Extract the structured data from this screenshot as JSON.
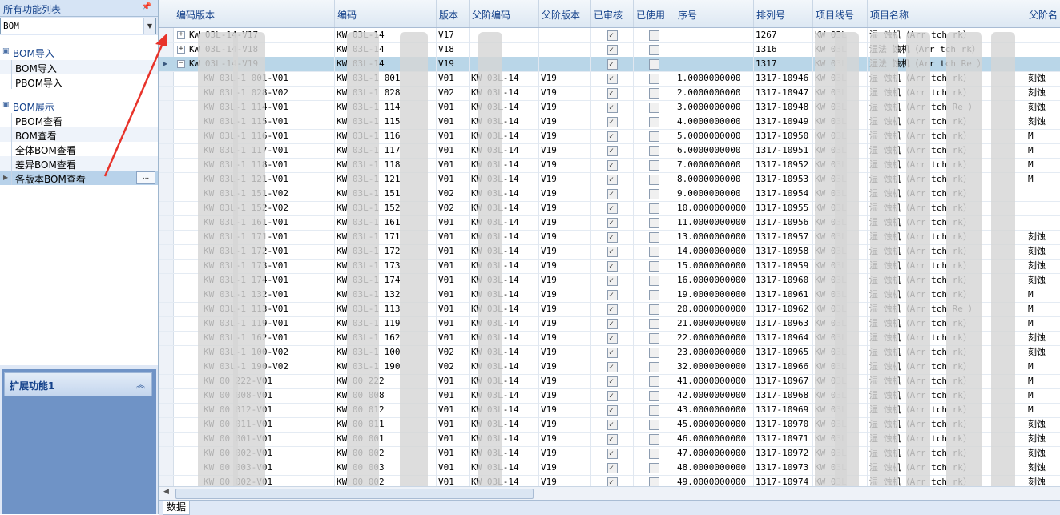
{
  "left_panel": {
    "title": "所有功能列表",
    "pin": "ᅲ",
    "combo_value": "BOM",
    "groups": [
      {
        "label": "BOM导入",
        "items": [
          "BOM导入",
          "PBOM导入"
        ]
      },
      {
        "label": "BOM展示",
        "items": [
          "PBOM查看",
          "BOM查看",
          "全体BOM查看",
          "差异BOM查看",
          "各版本BOM查看"
        ]
      }
    ],
    "selected_item_more": "...",
    "extension_title": "扩展功能1",
    "extension_icon": "≈"
  },
  "grid": {
    "columns": [
      "编码版本",
      "编码",
      "版本",
      "父阶编码",
      "父阶版本",
      "已审核",
      "已使用",
      "序号",
      "排列号",
      "项目线号",
      "项目名称",
      "父阶名"
    ],
    "rows": [
      {
        "cv": "KW   03L-14-V17",
        "code": "KW   03L-14",
        "ver": "V17",
        "pcode": "",
        "pver": "",
        "aud": true,
        "used": false,
        "seq": "",
        "arr": "1267",
        "line": "KW   03L",
        "name": "湿    蚀机（Arr   tch   rk）",
        "pname": "",
        "kind": "parent",
        "exp": "+"
      },
      {
        "cv": "KW   03L-14-V18",
        "code": "KW   03L-14",
        "ver": "V18",
        "pcode": "",
        "pver": "",
        "aud": true,
        "used": false,
        "seq": "",
        "arr": "1316",
        "line": "KW   03L",
        "name": "湿法   蚀机（Arr   tch   rk）",
        "pname": "",
        "kind": "parent",
        "exp": "+"
      },
      {
        "cv": "KW   03L-14-V19",
        "code": "KW   03L-14",
        "ver": "V19",
        "pcode": "",
        "pver": "",
        "aud": true,
        "used": false,
        "seq": "",
        "arr": "1317",
        "line": "KW   03L",
        "name": "湿法   蚀机（Arr   tch Re   ）",
        "pname": "",
        "kind": "selected",
        "exp": "−"
      },
      {
        "cv": "KW   03L-1   001-V01",
        "code": "KW   03L-1   001",
        "ver": "V01",
        "pcode": "KW   03L-14",
        "pver": "V19",
        "aud": true,
        "used": false,
        "seq": "1.0000000000",
        "arr": "1317-10946",
        "line": "KW   03L",
        "name": "湿    蚀机（Arr   tch   rk）",
        "pname": "刻蚀",
        "kind": "child"
      },
      {
        "cv": "KW   03L-1   028-V02",
        "code": "KW   03L-1   028",
        "ver": "V02",
        "pcode": "KW   03L-14",
        "pver": "V19",
        "aud": true,
        "used": false,
        "seq": "2.0000000000",
        "arr": "1317-10947",
        "line": "KW   03L",
        "name": "湿    蚀机（Arr   tch   rk）",
        "pname": "刻蚀",
        "kind": "child"
      },
      {
        "cv": "KW   03L-1   114-V01",
        "code": "KW   03L-1   114",
        "ver": "V01",
        "pcode": "KW   03L-14",
        "pver": "V19",
        "aud": true,
        "used": false,
        "seq": "3.0000000000",
        "arr": "1317-10948",
        "line": "KW   03L",
        "name": "湿    蚀机（Arr   tch Re   ）",
        "pname": "刻蚀",
        "kind": "child"
      },
      {
        "cv": "KW   03L-1   115-V01",
        "code": "KW   03L-1   115",
        "ver": "V01",
        "pcode": "KW   03L-14",
        "pver": "V19",
        "aud": true,
        "used": false,
        "seq": "4.0000000000",
        "arr": "1317-10949",
        "line": "KW   03L",
        "name": "湿    蚀机（Arr   tch   rk）",
        "pname": "刻蚀",
        "kind": "child"
      },
      {
        "cv": "KW   03L-1   116-V01",
        "code": "KW   03L-1   116",
        "ver": "V01",
        "pcode": "KW   03L-14",
        "pver": "V19",
        "aud": true,
        "used": false,
        "seq": "5.0000000000",
        "arr": "1317-10950",
        "line": "KW   03L",
        "name": "湿    蚀机（Arr   tch   rk）",
        "pname": "M",
        "kind": "child"
      },
      {
        "cv": "KW   03L-1   117-V01",
        "code": "KW   03L-1   117",
        "ver": "V01",
        "pcode": "KW   03L-14",
        "pver": "V19",
        "aud": true,
        "used": false,
        "seq": "6.0000000000",
        "arr": "1317-10951",
        "line": "KW   03L",
        "name": "湿    蚀机（Arr   tch   rk）",
        "pname": "M",
        "kind": "child"
      },
      {
        "cv": "KW   03L-1   118-V01",
        "code": "KW   03L-1   118",
        "ver": "V01",
        "pcode": "KW   03L-14",
        "pver": "V19",
        "aud": true,
        "used": false,
        "seq": "7.0000000000",
        "arr": "1317-10952",
        "line": "KW   03L",
        "name": "湿    蚀机（Arr   tch   rk）",
        "pname": "M",
        "kind": "child"
      },
      {
        "cv": "KW   03L-1   121-V01",
        "code": "KW   03L-1   121",
        "ver": "V01",
        "pcode": "KW   03L-14",
        "pver": "V19",
        "aud": true,
        "used": false,
        "seq": "8.0000000000",
        "arr": "1317-10953",
        "line": "KW   03L",
        "name": "湿    蚀机（Arr   tch   rk）",
        "pname": "M",
        "kind": "child"
      },
      {
        "cv": "KW   03L-1   151-V02",
        "code": "KW   03L-1   151",
        "ver": "V02",
        "pcode": "KW   03L-14",
        "pver": "V19",
        "aud": true,
        "used": false,
        "seq": "9.0000000000",
        "arr": "1317-10954",
        "line": "KW   03L",
        "name": "湿    蚀机（Arr   tch   rk）",
        "pname": "",
        "kind": "child"
      },
      {
        "cv": "KW   03L-1   152-V02",
        "code": "KW   03L-1   152",
        "ver": "V02",
        "pcode": "KW   03L-14",
        "pver": "V19",
        "aud": true,
        "used": false,
        "seq": "10.0000000000",
        "arr": "1317-10955",
        "line": "KW   03L",
        "name": "湿    蚀机（Arr   tch   rk）",
        "pname": "",
        "kind": "child"
      },
      {
        "cv": "KW   03L-1   161-V01",
        "code": "KW   03L-1   161",
        "ver": "V01",
        "pcode": "KW   03L-14",
        "pver": "V19",
        "aud": true,
        "used": false,
        "seq": "11.0000000000",
        "arr": "1317-10956",
        "line": "KW   03L",
        "name": "湿    蚀机（Arr   tch   rk）",
        "pname": "",
        "kind": "child"
      },
      {
        "cv": "KW   03L-1   171-V01",
        "code": "KW   03L-1   171",
        "ver": "V01",
        "pcode": "KW   03L-14",
        "pver": "V19",
        "aud": true,
        "used": false,
        "seq": "13.0000000000",
        "arr": "1317-10957",
        "line": "KW   03L",
        "name": "湿    蚀机（Arr   tch   rk）",
        "pname": "刻蚀",
        "kind": "child"
      },
      {
        "cv": "KW   03L-1   172-V01",
        "code": "KW   03L-1   172",
        "ver": "V01",
        "pcode": "KW   03L-14",
        "pver": "V19",
        "aud": true,
        "used": false,
        "seq": "14.0000000000",
        "arr": "1317-10958",
        "line": "KW   03L",
        "name": "湿    蚀机（Arr   tch   rk）",
        "pname": "刻蚀",
        "kind": "child"
      },
      {
        "cv": "KW   03L-1   173-V01",
        "code": "KW   03L-1   173",
        "ver": "V01",
        "pcode": "KW   03L-14",
        "pver": "V19",
        "aud": true,
        "used": false,
        "seq": "15.0000000000",
        "arr": "1317-10959",
        "line": "KW   03L",
        "name": "湿    蚀机（Arr   tch   rk）",
        "pname": "刻蚀",
        "kind": "child"
      },
      {
        "cv": "KW   03L-1   174-V01",
        "code": "KW   03L-1   174",
        "ver": "V01",
        "pcode": "KW   03L-14",
        "pver": "V19",
        "aud": true,
        "used": false,
        "seq": "16.0000000000",
        "arr": "1317-10960",
        "line": "KW   03L",
        "name": "湿    蚀机（Arr   tch   rk）",
        "pname": "刻蚀",
        "kind": "child"
      },
      {
        "cv": "KW   03L-1   132-V01",
        "code": "KW   03L-1   132",
        "ver": "V01",
        "pcode": "KW   03L-14",
        "pver": "V19",
        "aud": true,
        "used": false,
        "seq": "19.0000000000",
        "arr": "1317-10961",
        "line": "KW   03L",
        "name": "湿    蚀机（Arr   tch   rk）",
        "pname": "M",
        "kind": "child"
      },
      {
        "cv": "KW   03L-1   113-V01",
        "code": "KW   03L-1   113",
        "ver": "V01",
        "pcode": "KW   03L-14",
        "pver": "V19",
        "aud": true,
        "used": false,
        "seq": "20.0000000000",
        "arr": "1317-10962",
        "line": "KW   03L",
        "name": "湿    蚀机（Arr   tch Re   ）",
        "pname": "M",
        "kind": "child"
      },
      {
        "cv": "KW   03L-1   119-V01",
        "code": "KW   03L-1   119",
        "ver": "V01",
        "pcode": "KW   03L-14",
        "pver": "V19",
        "aud": true,
        "used": false,
        "seq": "21.0000000000",
        "arr": "1317-10963",
        "line": "KW   03L",
        "name": "湿    蚀机（Arr   tch   rk）",
        "pname": "M",
        "kind": "child"
      },
      {
        "cv": "KW   03L-1   162-V01",
        "code": "KW   03L-1   162",
        "ver": "V01",
        "pcode": "KW   03L-14",
        "pver": "V19",
        "aud": true,
        "used": false,
        "seq": "22.0000000000",
        "arr": "1317-10964",
        "line": "KW   03L",
        "name": "湿    蚀机（Arr   tch   rk）",
        "pname": "刻蚀",
        "kind": "child"
      },
      {
        "cv": "KW   03L-1   100-V02",
        "code": "KW   03L-1   100",
        "ver": "V02",
        "pcode": "KW   03L-14",
        "pver": "V19",
        "aud": true,
        "used": false,
        "seq": "23.0000000000",
        "arr": "1317-10965",
        "line": "KW   03L",
        "name": "湿    蚀机（Arr   tch   rk）",
        "pname": "刻蚀",
        "kind": "child"
      },
      {
        "cv": "KW   03L-1   190-V02",
        "code": "KW   03L-1   190",
        "ver": "V02",
        "pcode": "KW   03L-14",
        "pver": "V19",
        "aud": true,
        "used": false,
        "seq": "32.0000000000",
        "arr": "1317-10966",
        "line": "KW   03L",
        "name": "湿    蚀机（Arr   tch   rk）",
        "pname": "M",
        "kind": "child"
      },
      {
        "cv": "KW   00   222-V01",
        "code": "KW   00   222",
        "ver": "V01",
        "pcode": "KW   03L-14",
        "pver": "V19",
        "aud": true,
        "used": false,
        "seq": "41.0000000000",
        "arr": "1317-10967",
        "line": "KW   03L",
        "name": "湿    蚀机（Arr   tch   rk）",
        "pname": "M",
        "kind": "child"
      },
      {
        "cv": "KW   00   008-V01",
        "code": "KW   00   008",
        "ver": "V01",
        "pcode": "KW   03L-14",
        "pver": "V19",
        "aud": true,
        "used": false,
        "seq": "42.0000000000",
        "arr": "1317-10968",
        "line": "KW   03L",
        "name": "湿    蚀机（Arr   tch   rk）",
        "pname": "M",
        "kind": "child"
      },
      {
        "cv": "KW   00   012-V01",
        "code": "KW   00   012",
        "ver": "V01",
        "pcode": "KW   03L-14",
        "pver": "V19",
        "aud": true,
        "used": false,
        "seq": "43.0000000000",
        "arr": "1317-10969",
        "line": "KW   03L",
        "name": "湿    蚀机（Arr   tch   rk）",
        "pname": "M",
        "kind": "child"
      },
      {
        "cv": "KW   00   011-V01",
        "code": "KW   00   011",
        "ver": "V01",
        "pcode": "KW   03L-14",
        "pver": "V19",
        "aud": true,
        "used": false,
        "seq": "45.0000000000",
        "arr": "1317-10970",
        "line": "KW   03L",
        "name": "湿    蚀机（Arr   tch   rk）",
        "pname": "刻蚀",
        "kind": "child"
      },
      {
        "cv": "KW   00   001-V01",
        "code": "KW   00   001",
        "ver": "V01",
        "pcode": "KW   03L-14",
        "pver": "V19",
        "aud": true,
        "used": false,
        "seq": "46.0000000000",
        "arr": "1317-10971",
        "line": "KW   03L",
        "name": "湿    蚀机（Arr   tch   rk）",
        "pname": "刻蚀",
        "kind": "child"
      },
      {
        "cv": "KW   00   002-V01",
        "code": "KW   00   002",
        "ver": "V01",
        "pcode": "KW   03L-14",
        "pver": "V19",
        "aud": true,
        "used": false,
        "seq": "47.0000000000",
        "arr": "1317-10972",
        "line": "KW   03L",
        "name": "湿    蚀机（Arr   tch   rk）",
        "pname": "刻蚀",
        "kind": "child"
      },
      {
        "cv": "KW   00   003-V01",
        "code": "KW   00   003",
        "ver": "V01",
        "pcode": "KW   03L-14",
        "pver": "V19",
        "aud": true,
        "used": false,
        "seq": "48.0000000000",
        "arr": "1317-10973",
        "line": "KW   03L",
        "name": "湿    蚀机（Arr   tch   rk）",
        "pname": "刻蚀",
        "kind": "child"
      },
      {
        "cv": "KW   00   002-V01",
        "code": "KW   00   002",
        "ver": "V01",
        "pcode": "KW   03L-14",
        "pver": "V19",
        "aud": true,
        "used": false,
        "seq": "49.0000000000",
        "arr": "1317-10974",
        "line": "KW   03L",
        "name": "湿    蚀机（Arr   tch   rk）",
        "pname": "刻蚀",
        "kind": "child"
      }
    ]
  },
  "status_tab": "数据",
  "colors": {
    "selected_row": "#b9d6e8",
    "selected_nav": "#b8d2ea",
    "header_text": "#15428b",
    "annotation": "#e8332a"
  }
}
